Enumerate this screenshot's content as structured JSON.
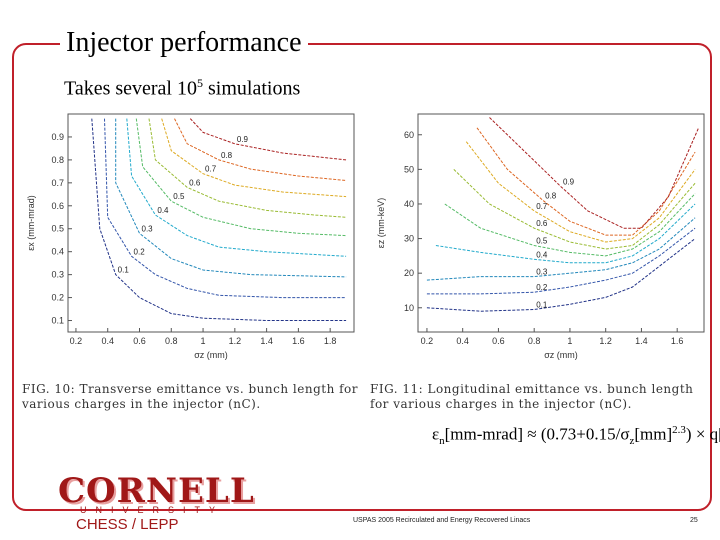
{
  "title": "Injector performance",
  "subtitle": {
    "text": "Takes several 10",
    "exp": "5",
    "rest": " simulations"
  },
  "formula": {
    "eps": "ε",
    "sub_n": "n",
    "lhs": "[mm-mrad] ≈ (0.73+0.15/",
    "sigma": "σ",
    "sub_z": "z",
    "mid": "[mm]",
    "exp": "2.3",
    "rhs": ") × q[nC]"
  },
  "captions": {
    "fig10": "FIG. 10: Transverse emittance vs. bunch length for various charges in the injector (nC).",
    "fig11": "FIG. 11: Longitudinal emittance vs. bunch length for various charges in the injector (nC)."
  },
  "footer": {
    "logo_main": "CORNELL",
    "logo_sub": "UNIVERSITY",
    "logo_group": "CHESS / LEPP",
    "center": "USPAS 2005 Recirculated and Energy Recovered Linacs",
    "page": "25"
  },
  "chart_data": [
    {
      "type": "line",
      "title": "",
      "xlabel": "σz (mm)",
      "ylabel": "εx (mm-mrad)",
      "xlim": [
        0.15,
        1.95
      ],
      "ylim": [
        0.05,
        1.0
      ],
      "xticks": [
        "0.2",
        "0.4",
        "0.6",
        "0.8",
        "1",
        "1.2",
        "1.4",
        "1.6",
        "1.8"
      ],
      "yticks": [
        "0.1",
        "0.2",
        "0.3",
        "0.4",
        "0.5",
        "0.6",
        "0.7",
        "0.8",
        "0.9"
      ],
      "series": [
        {
          "label": "0.1",
          "color": "#223388",
          "points": [
            [
              0.3,
              0.98
            ],
            [
              0.35,
              0.5
            ],
            [
              0.45,
              0.3
            ],
            [
              0.6,
              0.2
            ],
            [
              0.8,
              0.13
            ],
            [
              1.0,
              0.11
            ],
            [
              1.4,
              0.1
            ],
            [
              1.9,
              0.1
            ]
          ]
        },
        {
          "label": "0.2",
          "color": "#3355aa",
          "points": [
            [
              0.38,
              0.98
            ],
            [
              0.4,
              0.55
            ],
            [
              0.55,
              0.38
            ],
            [
              0.7,
              0.3
            ],
            [
              0.9,
              0.24
            ],
            [
              1.1,
              0.21
            ],
            [
              1.5,
              0.2
            ],
            [
              1.9,
              0.2
            ]
          ]
        },
        {
          "label": "0.3",
          "color": "#2288bb",
          "points": [
            [
              0.45,
              0.98
            ],
            [
              0.45,
              0.7
            ],
            [
              0.6,
              0.48
            ],
            [
              0.8,
              0.37
            ],
            [
              1.0,
              0.32
            ],
            [
              1.3,
              0.3
            ],
            [
              1.9,
              0.29
            ]
          ]
        },
        {
          "label": "0.4",
          "color": "#22aacc",
          "points": [
            [
              0.52,
              0.98
            ],
            [
              0.55,
              0.73
            ],
            [
              0.7,
              0.56
            ],
            [
              0.9,
              0.47
            ],
            [
              1.1,
              0.42
            ],
            [
              1.4,
              0.4
            ],
            [
              1.9,
              0.38
            ]
          ]
        },
        {
          "label": "0.5",
          "color": "#55bb66",
          "points": [
            [
              0.58,
              0.98
            ],
            [
              0.62,
              0.77
            ],
            [
              0.8,
              0.62
            ],
            [
              1.0,
              0.55
            ],
            [
              1.3,
              0.5
            ],
            [
              1.6,
              0.48
            ],
            [
              1.9,
              0.47
            ]
          ]
        },
        {
          "label": "0.6",
          "color": "#99bb33",
          "points": [
            [
              0.66,
              0.98
            ],
            [
              0.7,
              0.8
            ],
            [
              0.9,
              0.68
            ],
            [
              1.1,
              0.62
            ],
            [
              1.4,
              0.58
            ],
            [
              1.7,
              0.56
            ],
            [
              1.9,
              0.55
            ]
          ]
        },
        {
          "label": "0.7",
          "color": "#ddaa22",
          "points": [
            [
              0.74,
              0.98
            ],
            [
              0.8,
              0.84
            ],
            [
              1.0,
              0.74
            ],
            [
              1.2,
              0.69
            ],
            [
              1.5,
              0.66
            ],
            [
              1.9,
              0.64
            ]
          ]
        },
        {
          "label": "0.8",
          "color": "#dd6622",
          "points": [
            [
              0.82,
              0.98
            ],
            [
              0.9,
              0.87
            ],
            [
              1.1,
              0.8
            ],
            [
              1.3,
              0.76
            ],
            [
              1.6,
              0.73
            ],
            [
              1.9,
              0.71
            ]
          ]
        },
        {
          "label": "0.9",
          "color": "#aa2222",
          "points": [
            [
              0.92,
              0.98
            ],
            [
              1.0,
              0.92
            ],
            [
              1.2,
              0.87
            ],
            [
              1.5,
              0.83
            ],
            [
              1.9,
              0.8
            ]
          ]
        }
      ]
    },
    {
      "type": "line",
      "title": "",
      "xlabel": "σz (mm)",
      "ylabel": "εz (mm-keV)",
      "xlim": [
        0.15,
        1.75
      ],
      "ylim": [
        3,
        66
      ],
      "xticks": [
        "0.2",
        "0.4",
        "0.6",
        "0.8",
        "1",
        "1.2",
        "1.4",
        "1.6"
      ],
      "yticks": [
        "10",
        "20",
        "30",
        "40",
        "50",
        "60"
      ],
      "series": [
        {
          "label": "0.1",
          "color": "#223388",
          "points": [
            [
              0.2,
              10
            ],
            [
              0.5,
              9
            ],
            [
              0.8,
              9.5
            ],
            [
              1.0,
              11
            ],
            [
              1.2,
              13
            ],
            [
              1.35,
              16
            ],
            [
              1.5,
              22
            ],
            [
              1.7,
              30
            ]
          ]
        },
        {
          "label": "0.2",
          "color": "#3355aa",
          "points": [
            [
              0.2,
              14
            ],
            [
              0.5,
              14
            ],
            [
              0.8,
              14.5
            ],
            [
              1.0,
              16
            ],
            [
              1.2,
              18
            ],
            [
              1.35,
              20
            ],
            [
              1.5,
              25
            ],
            [
              1.7,
              33
            ]
          ]
        },
        {
          "label": "0.3",
          "color": "#2288bb",
          "points": [
            [
              0.2,
              18
            ],
            [
              0.5,
              19
            ],
            [
              0.8,
              19
            ],
            [
              1.0,
              20
            ],
            [
              1.2,
              21
            ],
            [
              1.35,
              23
            ],
            [
              1.5,
              27
            ],
            [
              1.7,
              36
            ]
          ]
        },
        {
          "label": "0.4",
          "color": "#22aacc",
          "points": [
            [
              0.25,
              28
            ],
            [
              0.5,
              26
            ],
            [
              0.8,
              24
            ],
            [
              1.0,
              23
            ],
            [
              1.2,
              23
            ],
            [
              1.35,
              25
            ],
            [
              1.5,
              30
            ],
            [
              1.7,
              40
            ]
          ]
        },
        {
          "label": "0.5",
          "color": "#55bb66",
          "points": [
            [
              0.3,
              40
            ],
            [
              0.5,
              33
            ],
            [
              0.8,
              28
            ],
            [
              1.0,
              26
            ],
            [
              1.2,
              25
            ],
            [
              1.35,
              27
            ],
            [
              1.5,
              32
            ],
            [
              1.7,
              43
            ]
          ]
        },
        {
          "label": "0.6",
          "color": "#99bb33",
          "points": [
            [
              0.35,
              50
            ],
            [
              0.55,
              40
            ],
            [
              0.8,
              33
            ],
            [
              1.0,
              29
            ],
            [
              1.2,
              27
            ],
            [
              1.35,
              28
            ],
            [
              1.5,
              34
            ],
            [
              1.7,
              46
            ]
          ]
        },
        {
          "label": "0.7",
          "color": "#ddaa22",
          "points": [
            [
              0.42,
              58
            ],
            [
              0.6,
              46
            ],
            [
              0.8,
              38
            ],
            [
              1.0,
              32
            ],
            [
              1.2,
              29
            ],
            [
              1.35,
              30
            ],
            [
              1.5,
              36
            ],
            [
              1.7,
              50
            ]
          ]
        },
        {
          "label": "0.8",
          "color": "#dd6622",
          "points": [
            [
              0.48,
              62
            ],
            [
              0.65,
              50
            ],
            [
              0.85,
              41
            ],
            [
              1.0,
              35
            ],
            [
              1.2,
              31
            ],
            [
              1.35,
              31
            ],
            [
              1.5,
              38
            ],
            [
              1.7,
              55
            ]
          ]
        },
        {
          "label": "0.9",
          "color": "#aa2222",
          "points": [
            [
              0.55,
              65
            ],
            [
              0.75,
              55
            ],
            [
              0.95,
              45
            ],
            [
              1.1,
              38
            ],
            [
              1.3,
              33
            ],
            [
              1.4,
              33
            ],
            [
              1.55,
              42
            ],
            [
              1.72,
              62
            ]
          ]
        }
      ]
    }
  ]
}
